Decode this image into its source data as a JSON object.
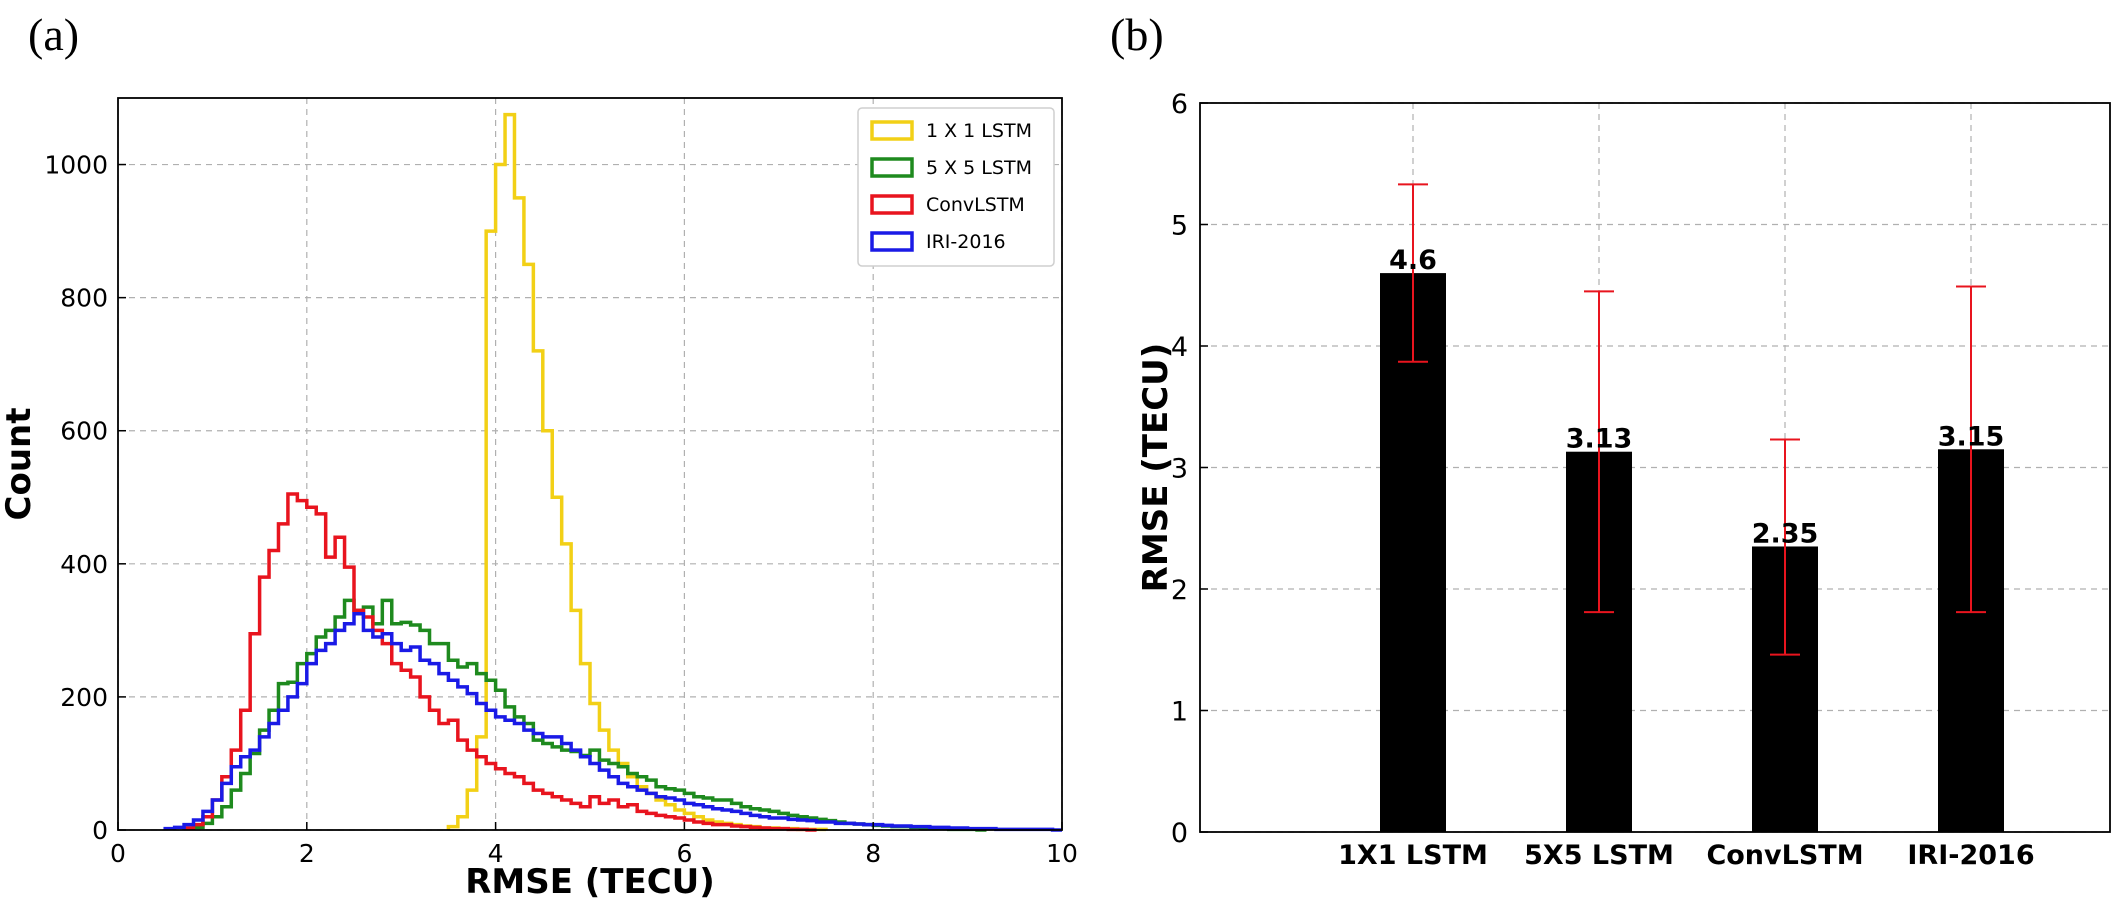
{
  "panels": {
    "a": "(a)",
    "b": "(b)"
  },
  "chart_data": [
    {
      "type": "histogram",
      "panel": "(a)",
      "xlabel": "RMSE (TECU)",
      "ylabel": "Count",
      "xlim": [
        0,
        10
      ],
      "ylim": [
        0,
        1100
      ],
      "xticks": [
        0,
        2,
        4,
        6,
        8,
        10
      ],
      "yticks": [
        0,
        200,
        400,
        600,
        800,
        1000
      ],
      "grid": true,
      "legend_position": "top-right",
      "bin_width": 0.1,
      "series": [
        {
          "name": "1 X 1 LSTM",
          "color": "#f2d016",
          "start": 3.5,
          "counts": [
            5,
            20,
            60,
            140,
            900,
            1000,
            1075,
            950,
            850,
            720,
            600,
            500,
            430,
            330,
            250,
            190,
            150,
            120,
            100,
            80,
            65,
            55,
            45,
            38,
            30,
            25,
            20,
            15,
            12,
            10,
            8,
            6,
            5,
            3,
            3,
            2,
            2,
            1,
            1,
            1
          ]
        },
        {
          "name": "5 X 5 LSTM",
          "color": "#1e8a1e",
          "start": 0.7,
          "counts": [
            2,
            4,
            10,
            20,
            35,
            60,
            85,
            115,
            150,
            180,
            220,
            222,
            250,
            265,
            290,
            300,
            320,
            345,
            330,
            335,
            310,
            345,
            310,
            312,
            308,
            300,
            280,
            280,
            255,
            245,
            250,
            235,
            225,
            210,
            185,
            170,
            160,
            135,
            130,
            125,
            120,
            118,
            112,
            120,
            105,
            100,
            95,
            85,
            80,
            75,
            65,
            62,
            60,
            55,
            50,
            48,
            45,
            45,
            40,
            35,
            32,
            30,
            28,
            25,
            22,
            20,
            18,
            16,
            14,
            12,
            10,
            9,
            8,
            7,
            6,
            5,
            5,
            4,
            3,
            2,
            2,
            1,
            1,
            1,
            0
          ]
        },
        {
          "name": "ConvLSTM",
          "color": "#e8141e",
          "start": 0.7,
          "counts": [
            3,
            8,
            20,
            45,
            80,
            120,
            180,
            295,
            380,
            420,
            460,
            505,
            495,
            485,
            475,
            410,
            440,
            395,
            330,
            320,
            300,
            280,
            250,
            240,
            230,
            200,
            180,
            160,
            165,
            135,
            120,
            110,
            100,
            92,
            85,
            80,
            70,
            60,
            55,
            50,
            45,
            40,
            35,
            50,
            40,
            45,
            35,
            38,
            28,
            25,
            22,
            20,
            18,
            15,
            12,
            10,
            8,
            8,
            6,
            5,
            4,
            3,
            2,
            2,
            1,
            1,
            0
          ]
        },
        {
          "name": "IRI-2016",
          "color": "#1a1ae6",
          "start": 0.5,
          "counts": [
            2,
            4,
            8,
            15,
            28,
            45,
            70,
            95,
            110,
            120,
            140,
            160,
            180,
            200,
            220,
            250,
            270,
            280,
            300,
            310,
            325,
            300,
            290,
            295,
            280,
            270,
            275,
            255,
            250,
            235,
            225,
            215,
            205,
            190,
            180,
            170,
            165,
            160,
            150,
            145,
            140,
            140,
            130,
            120,
            110,
            100,
            90,
            80,
            70,
            65,
            60,
            55,
            50,
            48,
            45,
            40,
            38,
            35,
            32,
            30,
            28,
            25,
            22,
            20,
            18,
            18,
            16,
            15,
            14,
            12,
            12,
            10,
            10,
            9,
            8,
            8,
            7,
            6,
            6,
            5,
            5,
            4,
            4,
            3,
            3,
            2,
            2,
            2,
            1,
            1,
            1,
            1,
            1,
            1,
            0
          ]
        }
      ]
    },
    {
      "type": "bar",
      "panel": "(b)",
      "ylabel": "RMSE (TECU)",
      "ylim": [
        0,
        6
      ],
      "yticks": [
        0,
        1,
        2,
        3,
        4,
        5,
        6
      ],
      "grid": true,
      "bar_color": "#000000",
      "error_color": "#e8141e",
      "categories": [
        "1X1 LSTM",
        "5X5 LSTM",
        "ConvLSTM",
        "IRI-2016"
      ],
      "values": [
        4.6,
        3.13,
        2.35,
        3.15
      ],
      "value_labels": [
        "4.6",
        "3.13",
        "2.35",
        "3.15"
      ],
      "error_low": [
        3.87,
        1.81,
        1.46,
        1.81
      ],
      "error_high": [
        5.33,
        4.45,
        3.23,
        4.49
      ]
    }
  ]
}
